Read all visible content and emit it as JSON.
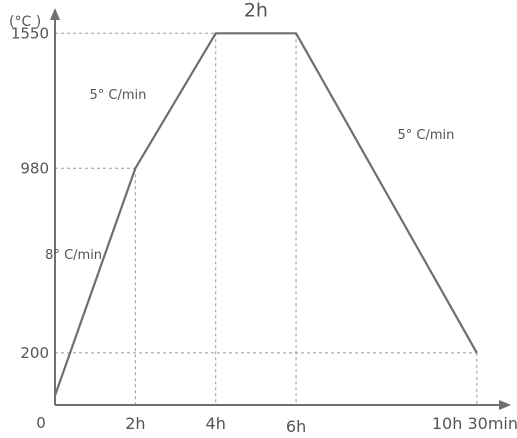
{
  "chart_data": {
    "type": "line",
    "title": "",
    "ylabel": "(°C )",
    "xlabel": "",
    "origin_label": "0",
    "x": [
      0,
      2,
      4,
      6,
      10.5
    ],
    "y": [
      20,
      980,
      1550,
      1550,
      200
    ],
    "xlim": [
      0,
      11.2
    ],
    "ylim": [
      -20,
      1640
    ],
    "y_ticks": [
      {
        "value": 200,
        "label": "200"
      },
      {
        "value": 980,
        "label": "980"
      },
      {
        "value": 1550,
        "label": "1550"
      }
    ],
    "x_ticks": [
      {
        "value": 2,
        "label": "2h"
      },
      {
        "value": 4,
        "label": "4h"
      },
      {
        "value": 6,
        "label": "6h"
      },
      {
        "value": 10.5,
        "label": "10h 30min"
      }
    ],
    "annotations": [
      {
        "text": "8° C/min",
        "segment": "heat-1"
      },
      {
        "text": "5° C/min",
        "segment": "heat-2"
      },
      {
        "text": "2h",
        "segment": "hold"
      },
      {
        "text": "5° C/min",
        "segment": "cool"
      }
    ],
    "grid": "dashed guide lines at curve vertices",
    "colors": {
      "line": "#6f6f6f",
      "axis": "#6f6f6f",
      "guide": "#9a9a9a",
      "text": "#555555"
    }
  }
}
